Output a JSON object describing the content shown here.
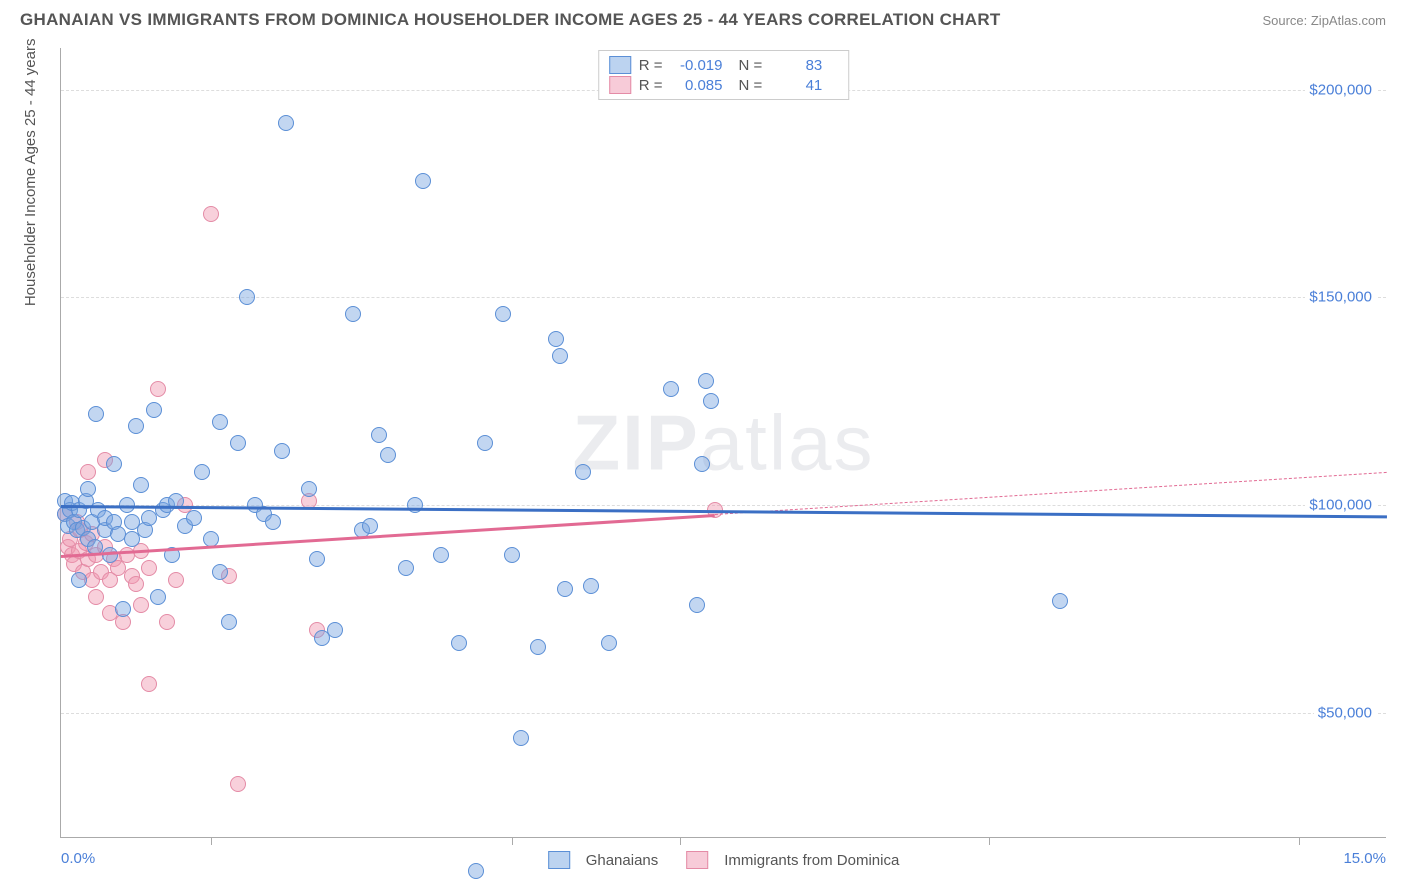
{
  "title": "GHANAIAN VS IMMIGRANTS FROM DOMINICA HOUSEHOLDER INCOME AGES 25 - 44 YEARS CORRELATION CHART",
  "source": "Source: ZipAtlas.com",
  "watermark_bold": "ZIP",
  "watermark_light": "atlas",
  "chart": {
    "type": "scatter",
    "xlim": [
      0,
      15
    ],
    "ylim": [
      20000,
      210000
    ],
    "x_min_label": "0.0%",
    "x_max_label": "15.0%",
    "y_axis_label": "Householder Income Ages 25 - 44 years",
    "y_ticks": [
      50000,
      100000,
      150000,
      200000
    ],
    "y_tick_labels": [
      "$50,000",
      "$100,000",
      "$150,000",
      "$200,000"
    ],
    "x_tick_positions": [
      1.7,
      5.1,
      7.0,
      10.5,
      14.0
    ],
    "grid_color": "#dddddd",
    "tick_label_color": "#4a7fd8",
    "background_color": "#ffffff"
  },
  "series": {
    "blue": {
      "label": "Ghanaians",
      "R": "-0.019",
      "N": "83",
      "fill_color": "rgba(120, 165, 225, 0.45)",
      "stroke_color": "#5b8fd6",
      "swatch_fill": "#bcd3f0",
      "swatch_border": "#5b8fd6",
      "trend": {
        "x1": 0,
        "y1": 100000,
        "x2": 15,
        "y2": 97500,
        "solid_end_x": 15,
        "color": "#3b6fc4"
      },
      "points": [
        [
          0.05,
          98000
        ],
        [
          0.05,
          101000
        ],
        [
          0.08,
          95000
        ],
        [
          0.1,
          99000
        ],
        [
          0.12,
          100500
        ],
        [
          0.15,
          96000
        ],
        [
          0.18,
          94000
        ],
        [
          0.2,
          99000
        ],
        [
          0.2,
          82000
        ],
        [
          0.25,
          94500
        ],
        [
          0.28,
          101000
        ],
        [
          0.3,
          92000
        ],
        [
          0.3,
          104000
        ],
        [
          0.35,
          96000
        ],
        [
          0.38,
          90000
        ],
        [
          0.4,
          122000
        ],
        [
          0.42,
          99000
        ],
        [
          0.5,
          94000
        ],
        [
          0.5,
          97000
        ],
        [
          0.55,
          88000
        ],
        [
          0.6,
          96000
        ],
        [
          0.6,
          110000
        ],
        [
          0.65,
          93000
        ],
        [
          0.7,
          75000
        ],
        [
          0.75,
          100000
        ],
        [
          0.8,
          96000
        ],
        [
          0.8,
          92000
        ],
        [
          0.85,
          119000
        ],
        [
          0.9,
          105000
        ],
        [
          0.95,
          94000
        ],
        [
          1.0,
          97000
        ],
        [
          1.05,
          123000
        ],
        [
          1.1,
          78000
        ],
        [
          1.15,
          99000
        ],
        [
          1.2,
          100000
        ],
        [
          1.25,
          88000
        ],
        [
          1.3,
          101000
        ],
        [
          1.4,
          95000
        ],
        [
          1.5,
          97000
        ],
        [
          1.6,
          108000
        ],
        [
          1.7,
          92000
        ],
        [
          1.8,
          120000
        ],
        [
          1.8,
          84000
        ],
        [
          1.9,
          72000
        ],
        [
          2.0,
          115000
        ],
        [
          2.1,
          150000
        ],
        [
          2.2,
          100000
        ],
        [
          2.3,
          98000
        ],
        [
          2.4,
          96000
        ],
        [
          2.5,
          113000
        ],
        [
          2.55,
          192000
        ],
        [
          2.8,
          104000
        ],
        [
          2.9,
          87000
        ],
        [
          2.95,
          68000
        ],
        [
          3.1,
          70000
        ],
        [
          3.3,
          146000
        ],
        [
          3.4,
          94000
        ],
        [
          3.5,
          95000
        ],
        [
          3.6,
          117000
        ],
        [
          3.7,
          112000
        ],
        [
          3.9,
          85000
        ],
        [
          4.0,
          100000
        ],
        [
          4.1,
          178000
        ],
        [
          4.3,
          88000
        ],
        [
          4.5,
          67000
        ],
        [
          4.7,
          12000
        ],
        [
          4.8,
          115000
        ],
        [
          5.0,
          146000
        ],
        [
          5.1,
          88000
        ],
        [
          5.2,
          44000
        ],
        [
          5.4,
          66000
        ],
        [
          5.6,
          140000
        ],
        [
          5.65,
          136000
        ],
        [
          5.7,
          80000
        ],
        [
          5.9,
          108000
        ],
        [
          6.0,
          80500
        ],
        [
          6.2,
          67000
        ],
        [
          6.9,
          128000
        ],
        [
          7.2,
          76000
        ],
        [
          7.25,
          110000
        ],
        [
          7.3,
          130000
        ],
        [
          7.35,
          125000
        ],
        [
          11.3,
          77000
        ]
      ]
    },
    "pink": {
      "label": "Immigrants from Dominica",
      "R": "0.085",
      "N": "41",
      "fill_color": "rgba(240, 150, 175, 0.45)",
      "stroke_color": "#e48ba6",
      "swatch_fill": "#f7cbd8",
      "swatch_border": "#e48ba6",
      "trend": {
        "x1": 0,
        "y1": 88000,
        "x2": 15,
        "y2": 108000,
        "solid_end_x": 7.4,
        "color": "#e26a93"
      },
      "points": [
        [
          0.05,
          98000
        ],
        [
          0.08,
          90000
        ],
        [
          0.1,
          92000
        ],
        [
          0.12,
          88000
        ],
        [
          0.15,
          86000
        ],
        [
          0.18,
          96000
        ],
        [
          0.2,
          89000
        ],
        [
          0.22,
          94000
        ],
        [
          0.25,
          84000
        ],
        [
          0.28,
          91000
        ],
        [
          0.3,
          87000
        ],
        [
          0.3,
          108000
        ],
        [
          0.35,
          82000
        ],
        [
          0.35,
          93000
        ],
        [
          0.4,
          88000
        ],
        [
          0.4,
          78000
        ],
        [
          0.45,
          84000
        ],
        [
          0.5,
          90000
        ],
        [
          0.5,
          111000
        ],
        [
          0.55,
          82000
        ],
        [
          0.55,
          74000
        ],
        [
          0.6,
          87000
        ],
        [
          0.65,
          85000
        ],
        [
          0.7,
          72000
        ],
        [
          0.75,
          88000
        ],
        [
          0.8,
          83000
        ],
        [
          0.85,
          81000
        ],
        [
          0.9,
          76000
        ],
        [
          0.9,
          89000
        ],
        [
          1.0,
          85000
        ],
        [
          1.0,
          57000
        ],
        [
          1.1,
          128000
        ],
        [
          1.2,
          72000
        ],
        [
          1.3,
          82000
        ],
        [
          1.4,
          100000
        ],
        [
          1.7,
          170000
        ],
        [
          1.9,
          83000
        ],
        [
          2.0,
          33000
        ],
        [
          2.8,
          101000
        ],
        [
          2.9,
          70000
        ],
        [
          7.4,
          99000
        ]
      ]
    }
  },
  "labels": {
    "R_prefix": "R =",
    "N_prefix": "N ="
  }
}
